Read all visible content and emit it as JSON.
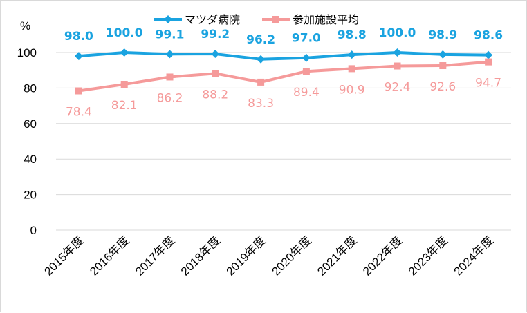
{
  "chart_data": {
    "type": "line",
    "ylabel": "%",
    "ylim": [
      0,
      100
    ],
    "yticks": [
      0,
      20,
      40,
      60,
      80,
      100
    ],
    "grid": true,
    "legend_position": "top",
    "categories": [
      "2015年度",
      "2016年度",
      "2017年度",
      "2018年度",
      "2019年度",
      "2020年度",
      "2021年度",
      "2022年度",
      "2023年度",
      "2024年度"
    ],
    "series": [
      {
        "name": "マツダ病院",
        "color": "#1aa3e0",
        "marker": "diamond",
        "values": [
          98.0,
          100.0,
          99.1,
          99.2,
          96.2,
          97.0,
          98.8,
          100.0,
          98.9,
          98.6
        ],
        "labels": [
          "98.0",
          "100.0",
          "99.1",
          "99.2",
          "96.2",
          "97.0",
          "98.8",
          "100.0",
          "98.9",
          "98.6"
        ]
      },
      {
        "name": "参加施設平均",
        "color": "#f59a9a",
        "marker": "square",
        "values": [
          78.4,
          82.1,
          86.2,
          88.2,
          83.3,
          89.4,
          90.9,
          92.4,
          92.6,
          94.7
        ],
        "labels": [
          "78.4",
          "82.1",
          "86.2",
          "88.2",
          "83.3",
          "89.4",
          "90.9",
          "92.4",
          "92.6",
          "94.7"
        ]
      }
    ]
  }
}
